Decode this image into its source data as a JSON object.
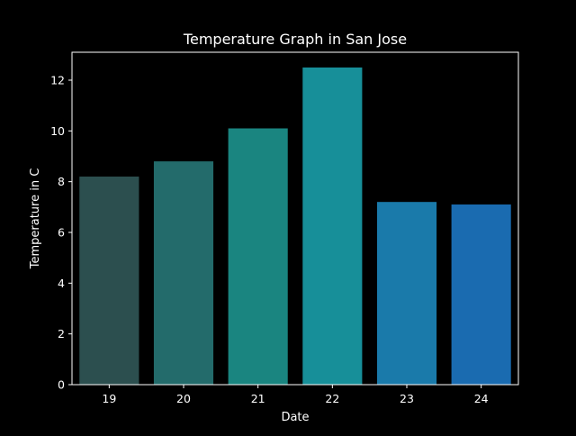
{
  "chart_data": {
    "type": "bar",
    "title": "Temperature Graph in San Jose",
    "xlabel": "Date",
    "ylabel": "Temperature in C",
    "categories": [
      "19",
      "20",
      "21",
      "22",
      "23",
      "24"
    ],
    "values": [
      8.2,
      8.8,
      10.1,
      12.5,
      7.2,
      7.1
    ],
    "colors": [
      "#2c4f4f",
      "#236b6b",
      "#1a8580",
      "#178f99",
      "#1a7aaa",
      "#1a6bb0"
    ],
    "ylim": [
      0,
      13.1
    ],
    "yticks": [
      0,
      2,
      4,
      6,
      8,
      10,
      12
    ],
    "grid": false,
    "background": "#000000",
    "foreground": "#ffffff"
  }
}
